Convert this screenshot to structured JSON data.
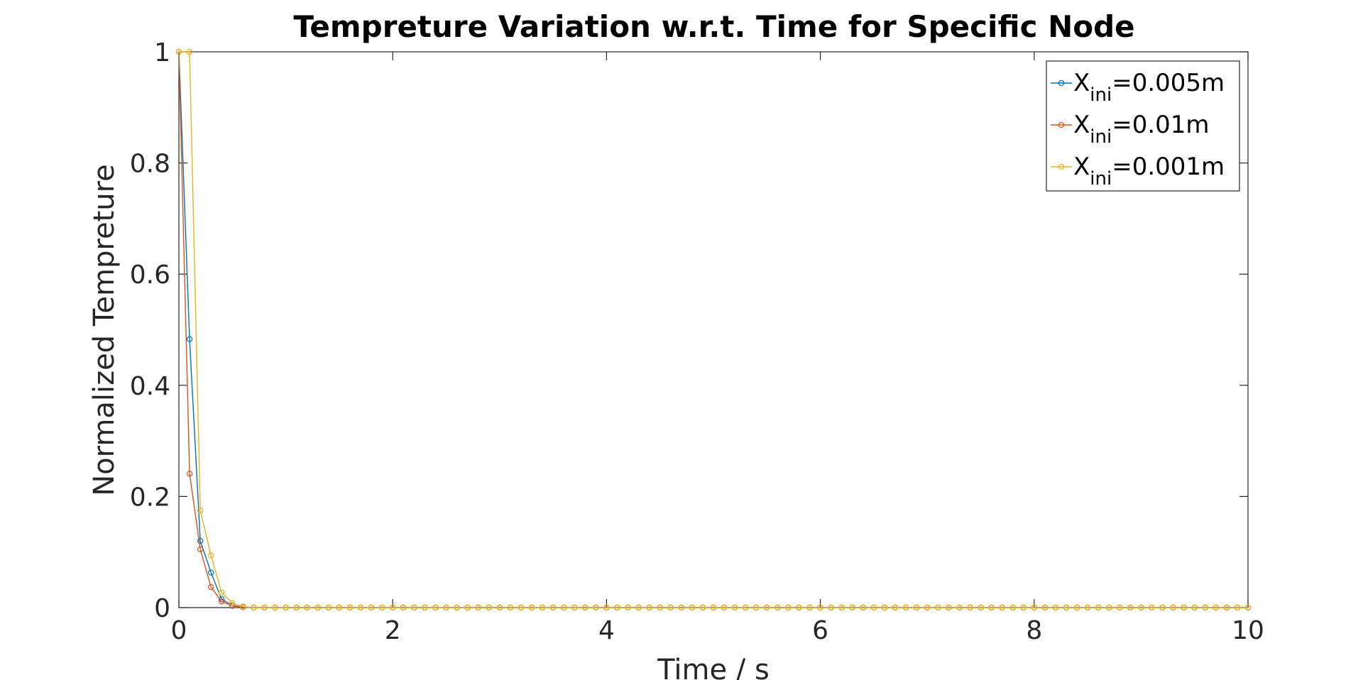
{
  "chart_data": {
    "type": "line",
    "title": "Tempreture Variation w.r.t. Time for Specific Node",
    "xlabel": "Time / s",
    "ylabel": "Normalized Tempreture",
    "xlim": [
      0,
      10
    ],
    "ylim": [
      0,
      1
    ],
    "xticks": [
      0,
      2,
      4,
      6,
      8,
      10
    ],
    "yticks": [
      0,
      0.2,
      0.4,
      0.6,
      0.8,
      1
    ],
    "xtick_labels": [
      "0",
      "2",
      "4",
      "6",
      "8",
      "10"
    ],
    "ytick_labels": [
      "0",
      "0.2",
      "0.4",
      "0.6",
      "0.8",
      "1"
    ],
    "grid": false,
    "legend_position": "top-right",
    "marker": "circle",
    "x_start": 0,
    "x_step": 0.1,
    "series": [
      {
        "name_main": "X",
        "name_sub": "ini",
        "name_suffix": "=0.005m",
        "color": "#0072BD",
        "values": [
          1,
          0.483,
          0.12,
          0.063,
          0.015,
          0.004,
          0.001,
          0,
          0,
          0,
          0,
          0,
          0,
          0,
          0,
          0,
          0,
          0,
          0,
          0,
          0,
          0,
          0,
          0,
          0,
          0,
          0,
          0,
          0,
          0,
          0,
          0,
          0,
          0,
          0,
          0,
          0,
          0,
          0,
          0,
          0,
          0,
          0,
          0,
          0,
          0,
          0,
          0,
          0,
          0,
          0,
          0,
          0,
          0,
          0,
          0,
          0,
          0,
          0,
          0,
          0,
          0,
          0,
          0,
          0,
          0,
          0,
          0,
          0,
          0,
          0,
          0,
          0,
          0,
          0,
          0,
          0,
          0,
          0,
          0,
          0,
          0,
          0,
          0,
          0,
          0,
          0,
          0,
          0,
          0,
          0,
          0,
          0,
          0,
          0,
          0,
          0,
          0,
          0,
          0,
          0
        ]
      },
      {
        "name_main": "X",
        "name_sub": "ini",
        "name_suffix": "=0.01m",
        "color": "#D95319",
        "values": [
          1,
          0.241,
          0.105,
          0.037,
          0.011,
          0.003,
          0.001,
          0,
          0,
          0,
          0,
          0,
          0,
          0,
          0,
          0,
          0,
          0,
          0,
          0,
          0,
          0,
          0,
          0,
          0,
          0,
          0,
          0,
          0,
          0,
          0,
          0,
          0,
          0,
          0,
          0,
          0,
          0,
          0,
          0,
          0,
          0,
          0,
          0,
          0,
          0,
          0,
          0,
          0,
          0,
          0,
          0,
          0,
          0,
          0,
          0,
          0,
          0,
          0,
          0,
          0,
          0,
          0,
          0,
          0,
          0,
          0,
          0,
          0,
          0,
          0,
          0,
          0,
          0,
          0,
          0,
          0,
          0,
          0,
          0,
          0,
          0,
          0,
          0,
          0,
          0,
          0,
          0,
          0,
          0,
          0,
          0,
          0,
          0,
          0,
          0,
          0,
          0,
          0,
          0,
          0
        ]
      },
      {
        "name_main": "X",
        "name_sub": "ini",
        "name_suffix": "=0.001m",
        "color": "#EDB120",
        "values": [
          1,
          1,
          0.175,
          0.094,
          0.027,
          0.008,
          0.002,
          0,
          0,
          0,
          0,
          0,
          0,
          0,
          0,
          0,
          0,
          0,
          0,
          0,
          0,
          0,
          0,
          0,
          0,
          0,
          0,
          0,
          0,
          0,
          0,
          0,
          0,
          0,
          0,
          0,
          0,
          0,
          0,
          0,
          0,
          0,
          0,
          0,
          0,
          0,
          0,
          0,
          0,
          0,
          0,
          0,
          0,
          0,
          0,
          0,
          0,
          0,
          0,
          0,
          0,
          0,
          0,
          0,
          0,
          0,
          0,
          0,
          0,
          0,
          0,
          0,
          0,
          0,
          0,
          0,
          0,
          0,
          0,
          0,
          0,
          0,
          0,
          0,
          0,
          0,
          0,
          0,
          0,
          0,
          0,
          0,
          0,
          0,
          0,
          0,
          0,
          0,
          0,
          0,
          0
        ]
      }
    ]
  }
}
